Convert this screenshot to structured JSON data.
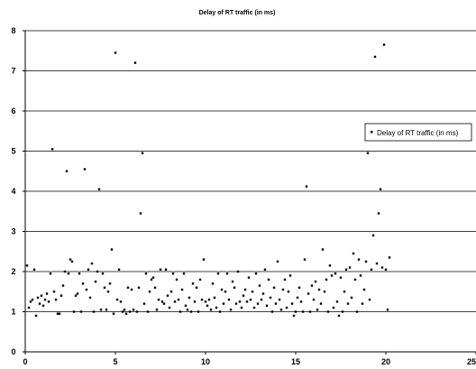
{
  "chart_data": {
    "type": "scatter",
    "title": "Delay of RT traffic (in ms)",
    "xlabel": "",
    "ylabel": "",
    "xlim": [
      0,
      25
    ],
    "ylim": [
      0,
      8
    ],
    "x_ticks": [
      "0",
      "5",
      "10",
      "15",
      "20",
      "25"
    ],
    "y_ticks": [
      "0",
      "1",
      "2",
      "3",
      "4",
      "5",
      "6",
      "7",
      "8"
    ],
    "grid": "horizontal",
    "legend_position": "right",
    "series": [
      {
        "name": "Delay of RT traffic (in ms)",
        "color": "#000000",
        "points": [
          [
            0.1,
            2.15
          ],
          [
            0.2,
            1.1
          ],
          [
            0.3,
            1.25
          ],
          [
            0.4,
            1.3
          ],
          [
            0.5,
            2.05
          ],
          [
            0.6,
            0.9
          ],
          [
            0.7,
            1.35
          ],
          [
            0.8,
            1.2
          ],
          [
            0.9,
            1.4
          ],
          [
            1.0,
            1.15
          ],
          [
            1.1,
            1.3
          ],
          [
            1.2,
            1.45
          ],
          [
            1.3,
            1.25
          ],
          [
            1.4,
            1.95
          ],
          [
            1.5,
            5.05
          ],
          [
            1.6,
            1.5
          ],
          [
            1.7,
            1.3
          ],
          [
            1.8,
            0.95
          ],
          [
            1.9,
            0.95
          ],
          [
            2.0,
            1.4
          ],
          [
            2.1,
            1.65
          ],
          [
            2.2,
            2.0
          ],
          [
            2.3,
            4.5
          ],
          [
            2.4,
            1.95
          ],
          [
            2.5,
            2.3
          ],
          [
            2.6,
            2.25
          ],
          [
            2.7,
            1.0
          ],
          [
            2.8,
            1.4
          ],
          [
            2.9,
            1.45
          ],
          [
            3.0,
            1.95
          ],
          [
            3.1,
            1.0
          ],
          [
            3.2,
            1.7
          ],
          [
            3.3,
            4.55
          ],
          [
            3.4,
            1.55
          ],
          [
            3.5,
            2.05
          ],
          [
            3.6,
            1.35
          ],
          [
            3.7,
            2.2
          ],
          [
            3.8,
            1.0
          ],
          [
            3.9,
            1.75
          ],
          [
            4.0,
            2.0
          ],
          [
            4.1,
            4.05
          ],
          [
            4.2,
            1.05
          ],
          [
            4.3,
            1.95
          ],
          [
            4.4,
            1.6
          ],
          [
            4.5,
            1.05
          ],
          [
            4.6,
            1.5
          ],
          [
            4.7,
            1.7
          ],
          [
            4.8,
            2.55
          ],
          [
            4.9,
            0.95
          ],
          [
            5.0,
            7.45
          ],
          [
            5.1,
            1.3
          ],
          [
            5.2,
            2.05
          ],
          [
            5.3,
            1.25
          ],
          [
            5.4,
            1.0
          ],
          [
            5.5,
            1.05
          ],
          [
            5.6,
            0.95
          ],
          [
            5.7,
            1.6
          ],
          [
            5.8,
            1.0
          ],
          [
            5.9,
            1.55
          ],
          [
            6.0,
            1.05
          ],
          [
            6.1,
            7.2
          ],
          [
            6.2,
            1.0
          ],
          [
            6.3,
            1.6
          ],
          [
            6.4,
            3.45
          ],
          [
            6.5,
            4.95
          ],
          [
            6.6,
            1.2
          ],
          [
            6.7,
            1.95
          ],
          [
            6.8,
            1.0
          ],
          [
            6.9,
            1.5
          ],
          [
            7.0,
            1.8
          ],
          [
            7.1,
            1.85
          ],
          [
            7.2,
            1.6
          ],
          [
            7.3,
            1.05
          ],
          [
            7.4,
            1.3
          ],
          [
            7.5,
            2.05
          ],
          [
            7.6,
            1.25
          ],
          [
            7.7,
            1.2
          ],
          [
            7.8,
            2.05
          ],
          [
            7.9,
            1.4
          ],
          [
            8.0,
            1.1
          ],
          [
            8.1,
            1.5
          ],
          [
            8.2,
            1.95
          ],
          [
            8.3,
            1.25
          ],
          [
            8.4,
            1.8
          ],
          [
            8.5,
            1.3
          ],
          [
            8.6,
            1.0
          ],
          [
            8.7,
            1.55
          ],
          [
            8.8,
            1.95
          ],
          [
            8.9,
            1.15
          ],
          [
            9.0,
            1.05
          ],
          [
            9.1,
            1.35
          ],
          [
            9.2,
            1.0
          ],
          [
            9.3,
            1.7
          ],
          [
            9.4,
            1.25
          ],
          [
            9.5,
            1.6
          ],
          [
            9.6,
            1.0
          ],
          [
            9.7,
            1.8
          ],
          [
            9.8,
            1.3
          ],
          [
            9.9,
            2.3
          ],
          [
            10.0,
            1.25
          ],
          [
            10.1,
            1.15
          ],
          [
            10.2,
            1.3
          ],
          [
            10.3,
            1.05
          ],
          [
            10.4,
            1.7
          ],
          [
            10.5,
            1.35
          ],
          [
            10.6,
            1.1
          ],
          [
            10.7,
            1.95
          ],
          [
            10.8,
            1.0
          ],
          [
            10.9,
            1.55
          ],
          [
            11.0,
            1.2
          ],
          [
            11.1,
            1.5
          ],
          [
            11.2,
            1.95
          ],
          [
            11.3,
            1.3
          ],
          [
            11.4,
            1.05
          ],
          [
            11.5,
            1.75
          ],
          [
            11.6,
            1.6
          ],
          [
            11.7,
            1.2
          ],
          [
            11.8,
            2.0
          ],
          [
            11.9,
            1.25
          ],
          [
            12.0,
            1.1
          ],
          [
            12.1,
            1.4
          ],
          [
            12.2,
            1.55
          ],
          [
            12.3,
            1.25
          ],
          [
            12.4,
            1.85
          ],
          [
            12.5,
            1.3
          ],
          [
            12.6,
            1.5
          ],
          [
            12.7,
            1.1
          ],
          [
            12.8,
            1.95
          ],
          [
            12.9,
            1.2
          ],
          [
            13.0,
            1.65
          ],
          [
            13.1,
            1.3
          ],
          [
            13.2,
            1.45
          ],
          [
            13.3,
            2.05
          ],
          [
            13.4,
            1.15
          ],
          [
            13.5,
            1.8
          ],
          [
            13.6,
            1.35
          ],
          [
            13.7,
            1.0
          ],
          [
            13.8,
            1.6
          ],
          [
            13.9,
            1.2
          ],
          [
            14.0,
            2.25
          ],
          [
            14.1,
            1.3
          ],
          [
            14.2,
            1.05
          ],
          [
            14.3,
            1.55
          ],
          [
            14.4,
            1.8
          ],
          [
            14.5,
            1.1
          ],
          [
            14.6,
            1.5
          ],
          [
            14.7,
            1.9
          ],
          [
            14.8,
            1.2
          ],
          [
            14.9,
            0.9
          ],
          [
            15.0,
            1.0
          ],
          [
            15.1,
            1.35
          ],
          [
            15.2,
            1.6
          ],
          [
            15.3,
            1.25
          ],
          [
            15.4,
            1.0
          ],
          [
            15.5,
            2.3
          ],
          [
            15.6,
            4.12
          ],
          [
            15.7,
            1.45
          ],
          [
            15.8,
            1.0
          ],
          [
            15.9,
            1.65
          ],
          [
            16.0,
            1.3
          ],
          [
            16.1,
            1.75
          ],
          [
            16.2,
            1.05
          ],
          [
            16.3,
            1.55
          ],
          [
            16.4,
            1.2
          ],
          [
            16.5,
            2.55
          ],
          [
            16.6,
            1.5
          ],
          [
            16.7,
            1.8
          ],
          [
            16.8,
            1.0
          ],
          [
            16.9,
            2.15
          ],
          [
            17.0,
            1.9
          ],
          [
            17.1,
            1.1
          ],
          [
            17.2,
            1.95
          ],
          [
            17.3,
            1.25
          ],
          [
            17.4,
            0.9
          ],
          [
            17.5,
            1.85
          ],
          [
            17.6,
            1.0
          ],
          [
            17.7,
            1.5
          ],
          [
            17.8,
            2.05
          ],
          [
            17.9,
            1.2
          ],
          [
            18.0,
            2.1
          ],
          [
            18.1,
            1.35
          ],
          [
            18.2,
            2.45
          ],
          [
            18.3,
            1.8
          ],
          [
            18.4,
            1.0
          ],
          [
            18.5,
            2.3
          ],
          [
            18.6,
            1.9
          ],
          [
            18.7,
            1.2
          ],
          [
            18.8,
            1.55
          ],
          [
            18.9,
            2.25
          ],
          [
            19.0,
            4.95
          ],
          [
            19.1,
            1.3
          ],
          [
            19.2,
            2.05
          ],
          [
            19.3,
            2.9
          ],
          [
            19.4,
            7.35
          ],
          [
            19.5,
            2.2
          ],
          [
            19.6,
            3.45
          ],
          [
            19.7,
            4.05
          ],
          [
            19.8,
            2.1
          ],
          [
            19.9,
            7.65
          ],
          [
            20.0,
            2.05
          ],
          [
            20.1,
            1.05
          ],
          [
            20.2,
            2.35
          ]
        ]
      }
    ]
  }
}
